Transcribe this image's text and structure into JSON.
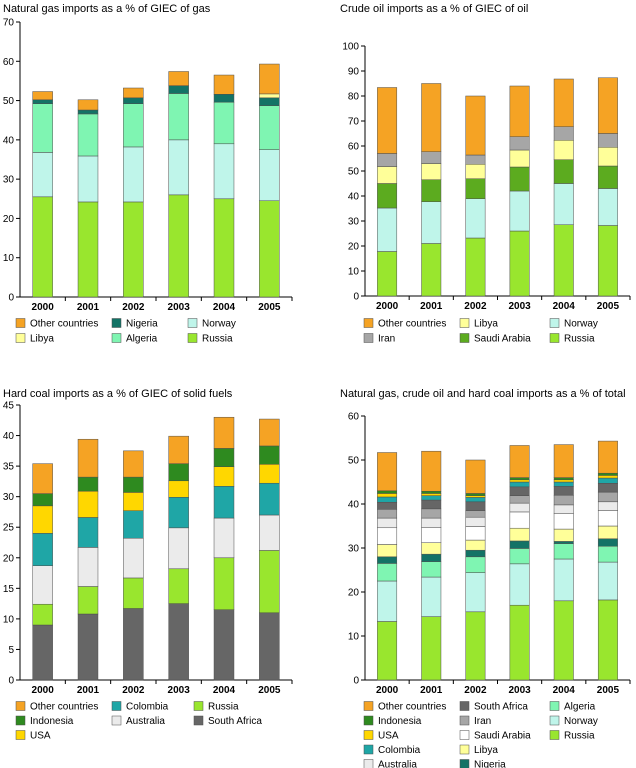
{
  "chart_data": [
    {
      "type": "bar",
      "stacked": true,
      "title": "Natural gas imports as a % of GIEC of gas",
      "categories": [
        "2000",
        "2001",
        "2002",
        "2003",
        "2004",
        "2005"
      ],
      "ylim": [
        0,
        70
      ],
      "yticks": [
        0,
        10,
        20,
        30,
        40,
        50,
        60,
        70
      ],
      "grid": false,
      "legend_position": "bottom",
      "legend_rows": [
        [
          "Other countries",
          "Nigeria",
          "Norway"
        ],
        [
          "Libya",
          "Algeria",
          "Russia"
        ]
      ],
      "series": [
        {
          "name": "Russia",
          "color": "#99e62e",
          "values": [
            25.5,
            24.2,
            24.2,
            26.0,
            25.0,
            24.5
          ]
        },
        {
          "name": "Norway",
          "color": "#bff5ea",
          "values": [
            11.3,
            11.7,
            14.0,
            14.0,
            14.0,
            13.0
          ]
        },
        {
          "name": "Algeria",
          "color": "#7ff5b2",
          "values": [
            12.4,
            10.7,
            11.0,
            11.8,
            10.6,
            11.2
          ]
        },
        {
          "name": "Nigeria",
          "color": "#137366",
          "values": [
            1.0,
            1.0,
            1.5,
            2.0,
            2.0,
            2.0
          ]
        },
        {
          "name": "Libya",
          "color": "#ffff99",
          "values": [
            0,
            0,
            0,
            0,
            0,
            1.0
          ]
        },
        {
          "name": "Other countries",
          "color": "#f5a324",
          "values": [
            2.1,
            2.6,
            2.5,
            3.6,
            4.9,
            7.6
          ]
        }
      ]
    },
    {
      "type": "bar",
      "stacked": true,
      "title": "Crude oil imports as a % of GIEC of oil",
      "categories": [
        "2000",
        "2001",
        "2002",
        "2003",
        "2004",
        "2005"
      ],
      "ylim": [
        0,
        100
      ],
      "yticks": [
        0,
        10,
        20,
        30,
        40,
        50,
        60,
        70,
        80,
        90,
        100
      ],
      "grid": false,
      "legend_position": "bottom",
      "legend_rows": [
        [
          "Other countries",
          "Libya",
          "Norway"
        ],
        [
          "Iran",
          "Saudi Arabia",
          "Russia"
        ]
      ],
      "series": [
        {
          "name": "Russia",
          "color": "#99e62e",
          "values": [
            17.8,
            21.0,
            23.2,
            26.0,
            28.5,
            28.2
          ]
        },
        {
          "name": "Norway",
          "color": "#bff5ea",
          "values": [
            17.4,
            16.7,
            15.7,
            16.0,
            16.5,
            14.8
          ]
        },
        {
          "name": "Saudi Arabia",
          "color": "#5cab1f",
          "values": [
            9.8,
            8.8,
            8.0,
            9.6,
            9.5,
            9.0
          ]
        },
        {
          "name": "Libya",
          "color": "#ffff99",
          "values": [
            6.8,
            6.5,
            5.8,
            6.8,
            7.8,
            7.5
          ]
        },
        {
          "name": "Iran",
          "color": "#a6a6a6",
          "values": [
            5.2,
            4.7,
            3.7,
            5.3,
            5.4,
            5.5
          ]
        },
        {
          "name": "Other countries",
          "color": "#f5a324",
          "values": [
            26.4,
            27.3,
            23.6,
            20.3,
            19.1,
            22.3
          ]
        }
      ]
    },
    {
      "type": "bar",
      "stacked": true,
      "title": "Hard coal imports as a % of GIEC of solid fuels",
      "categories": [
        "2000",
        "2001",
        "2002",
        "2003",
        "2004",
        "2005"
      ],
      "ylim": [
        0,
        45
      ],
      "yticks": [
        0,
        5,
        10,
        15,
        20,
        25,
        30,
        35,
        40,
        45
      ],
      "grid": false,
      "legend_position": "bottom",
      "legend_rows": [
        [
          "Other countries",
          "Colombia",
          "Russia"
        ],
        [
          "Indonesia",
          "Australia",
          "South Africa"
        ],
        [
          "USA"
        ]
      ],
      "series": [
        {
          "name": "South Africa",
          "color": "#666666",
          "values": [
            9.0,
            10.8,
            11.7,
            12.5,
            11.5,
            11.0
          ]
        },
        {
          "name": "Russia",
          "color": "#99e62e",
          "values": [
            3.4,
            4.5,
            5.0,
            5.7,
            8.5,
            10.2
          ]
        },
        {
          "name": "Australia",
          "color": "#ebebeb",
          "values": [
            6.3,
            6.4,
            6.5,
            6.7,
            6.5,
            5.8
          ]
        },
        {
          "name": "Colombia",
          "color": "#1fa6a6",
          "values": [
            5.3,
            4.9,
            4.5,
            5.0,
            5.2,
            5.2
          ]
        },
        {
          "name": "USA",
          "color": "#ffd700",
          "values": [
            4.5,
            4.3,
            3.0,
            2.7,
            3.2,
            3.1
          ]
        },
        {
          "name": "Indonesia",
          "color": "#2e8a1f",
          "values": [
            2.0,
            2.3,
            2.5,
            2.8,
            3.0,
            3.0
          ]
        },
        {
          "name": "Other countries",
          "color": "#f5a324",
          "values": [
            4.9,
            6.2,
            4.3,
            4.5,
            5.1,
            4.4
          ]
        }
      ]
    },
    {
      "type": "bar",
      "stacked": true,
      "title": "Natural gas, crude oil and hard coal imports as a % of total",
      "categories": [
        "2000",
        "2001",
        "2002",
        "2003",
        "2004",
        "2005"
      ],
      "ylim": [
        0,
        60
      ],
      "yticks": [
        0,
        10,
        20,
        30,
        40,
        50,
        60
      ],
      "grid": false,
      "legend_position": "bottom",
      "legend_rows": [
        [
          "Other countries",
          "South Africa",
          "Algeria"
        ],
        [
          "Indonesia",
          "Iran",
          "Norway"
        ],
        [
          "USA",
          "Saudi Arabia",
          "Russia"
        ],
        [
          "Colombia",
          "Libya"
        ],
        [
          "Australia",
          "Nigeria"
        ]
      ],
      "series": [
        {
          "name": "Russia",
          "color": "#99e62e",
          "values": [
            13.3,
            14.4,
            15.5,
            17.0,
            18.0,
            18.2
          ]
        },
        {
          "name": "Norway",
          "color": "#bff5ea",
          "values": [
            9.2,
            9.0,
            8.9,
            9.4,
            9.5,
            8.6
          ]
        },
        {
          "name": "Algeria",
          "color": "#7ff5b2",
          "values": [
            4.0,
            3.5,
            3.6,
            3.5,
            3.5,
            3.6
          ]
        },
        {
          "name": "Nigeria",
          "color": "#137366",
          "values": [
            1.5,
            1.7,
            1.5,
            1.7,
            0.5,
            1.7
          ]
        },
        {
          "name": "Libya",
          "color": "#ffff99",
          "values": [
            2.8,
            2.6,
            2.3,
            2.9,
            2.8,
            2.9
          ]
        },
        {
          "name": "Saudi Arabia",
          "color": "#ffffff",
          "values": [
            3.8,
            3.5,
            3.1,
            3.7,
            3.5,
            3.5
          ]
        },
        {
          "name": "Australia",
          "color": "#ebebeb",
          "values": [
            2.2,
            2.1,
            2.1,
            2.0,
            2.0,
            2.0
          ]
        },
        {
          "name": "Iran",
          "color": "#a6a6a6",
          "values": [
            2.0,
            2.1,
            1.5,
            1.7,
            2.2,
            2.2
          ]
        },
        {
          "name": "South Africa",
          "color": "#666666",
          "values": [
            1.6,
            2.0,
            2.0,
            2.0,
            2.0,
            2.0
          ]
        },
        {
          "name": "Colombia",
          "color": "#1fa6a6",
          "values": [
            1.2,
            1.0,
            1.0,
            1.1,
            1.0,
            1.2
          ]
        },
        {
          "name": "USA",
          "color": "#ffd700",
          "values": [
            0.8,
            0.5,
            0.4,
            0.5,
            0.5,
            0.6
          ]
        },
        {
          "name": "Indonesia",
          "color": "#2e8a1f",
          "values": [
            0.6,
            0.5,
            0.5,
            0.5,
            0.5,
            0.5
          ]
        },
        {
          "name": "Other countries",
          "color": "#f5a324",
          "values": [
            8.7,
            9.1,
            7.6,
            7.3,
            7.5,
            7.3
          ]
        }
      ]
    }
  ]
}
